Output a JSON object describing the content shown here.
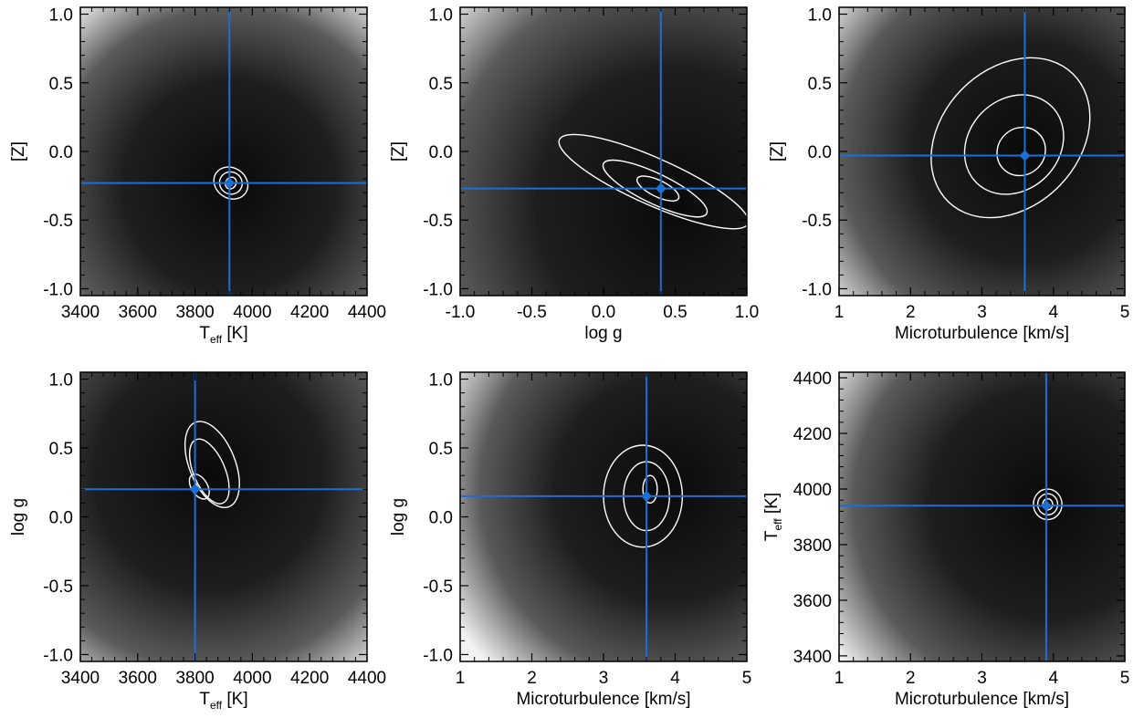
{
  "chart_data": [
    {
      "type": "heatmap",
      "xlabel": "T",
      "xlabel_sub": "eff",
      "xlabel_unit": " [K]",
      "ylabel": "[Z]",
      "ylabel_sub": "",
      "ylabel_unit": "",
      "xlim": [
        3400,
        4400
      ],
      "ylim": [
        -1.05,
        1.05
      ],
      "xticks": [
        3400,
        3600,
        3800,
        4000,
        4200,
        4400
      ],
      "xtick_labels": [
        "3400",
        "3600",
        "3800",
        "4000",
        "4200",
        "4400"
      ],
      "yticks": [
        -1.0,
        -0.5,
        0.0,
        0.5,
        1.0
      ],
      "ytick_labels": [
        "-1.0",
        "-0.5",
        "0.0",
        "0.5",
        "1.0"
      ],
      "best_fit": {
        "x": 3920,
        "y": -0.23
      },
      "contours": [
        {
          "cx": 3925,
          "cy": -0.23,
          "rx": 18,
          "ry": 0.045,
          "angle": -0.6
        },
        {
          "cx": 3925,
          "cy": -0.23,
          "rx": 40,
          "ry": 0.08,
          "angle": -0.6
        },
        {
          "cx": 3925,
          "cy": -0.23,
          "rx": 62,
          "ry": 0.11,
          "angle": -0.6
        }
      ],
      "background": {
        "dark_x": 3920,
        "dark_y": -0.25,
        "bright_x": 4400,
        "bright_y": 1.05
      }
    },
    {
      "type": "heatmap",
      "xlabel": "log g",
      "xlabel_sub": "",
      "xlabel_unit": "",
      "ylabel": "[Z]",
      "ylabel_sub": "",
      "ylabel_unit": "",
      "xlim": [
        -1.0,
        1.0
      ],
      "ylim": [
        -1.05,
        1.05
      ],
      "xticks": [
        -1.0,
        -0.5,
        0.0,
        0.5,
        1.0
      ],
      "xtick_labels": [
        "-1.0",
        "-0.5",
        "0.0",
        "0.5",
        "1.0"
      ],
      "yticks": [
        -1.0,
        -0.5,
        0.0,
        0.5,
        1.0
      ],
      "ytick_labels": [
        "-1.0",
        "-0.5",
        "0.0",
        "0.5",
        "1.0"
      ],
      "best_fit": {
        "x": 0.4,
        "y": -0.27
      },
      "contours": [
        {
          "cx": 0.38,
          "cy": -0.27,
          "rx": 0.16,
          "ry": 0.06,
          "angle": -0.45
        },
        {
          "cx": 0.36,
          "cy": -0.27,
          "rx": 0.4,
          "ry": 0.11,
          "angle": -0.45
        },
        {
          "cx": 0.35,
          "cy": -0.22,
          "rx": 0.72,
          "ry": 0.17,
          "angle": -0.42
        }
      ],
      "background": {
        "dark_x": 0.5,
        "dark_y": -0.4,
        "bright_x": -1.0,
        "bright_y": 1.05
      }
    },
    {
      "type": "heatmap",
      "xlabel": "Microturbulence [km/s]",
      "xlabel_sub": "",
      "xlabel_unit": "",
      "ylabel": "[Z]",
      "ylabel_sub": "",
      "ylabel_unit": "",
      "xlim": [
        1,
        5
      ],
      "ylim": [
        -1.05,
        1.05
      ],
      "xticks": [
        1,
        2,
        3,
        4,
        5
      ],
      "xtick_labels": [
        "1",
        "2",
        "3",
        "4",
        "5"
      ],
      "yticks": [
        -1.0,
        -0.5,
        0.0,
        0.5,
        1.0
      ],
      "ytick_labels": [
        "-1.0",
        "-0.5",
        "0.0",
        "0.5",
        "1.0"
      ],
      "best_fit": {
        "x": 3.6,
        "y": -0.03
      },
      "contours": [
        {
          "cx": 3.55,
          "cy": 0.0,
          "rx": 0.35,
          "ry": 0.17,
          "angle": 0.78
        },
        {
          "cx": 3.45,
          "cy": 0.05,
          "rx": 0.75,
          "ry": 0.33,
          "angle": 0.8
        },
        {
          "cx": 3.4,
          "cy": 0.1,
          "rx": 1.25,
          "ry": 0.5,
          "angle": 0.8
        }
      ],
      "background": {
        "dark_x": 3.6,
        "dark_y": 0.0,
        "bright_x": 1.0,
        "bright_y": -1.05
      }
    },
    {
      "type": "heatmap",
      "xlabel": "T",
      "xlabel_sub": "eff",
      "xlabel_unit": " [K]",
      "ylabel": "log g",
      "ylabel_sub": "",
      "ylabel_unit": "",
      "xlim": [
        3400,
        4400
      ],
      "ylim": [
        -1.05,
        1.05
      ],
      "xticks": [
        3400,
        3600,
        3800,
        4000,
        4200,
        4400
      ],
      "xtick_labels": [
        "3400",
        "3600",
        "3800",
        "4000",
        "4200",
        "4400"
      ],
      "yticks": [
        -1.0,
        -0.5,
        0.0,
        0.5,
        1.0
      ],
      "ytick_labels": [
        "-1.0",
        "-0.5",
        "0.0",
        "0.5",
        "1.0"
      ],
      "best_fit": {
        "x": 3800,
        "y": 0.2
      },
      "contours": [
        {
          "cx": 3815,
          "cy": 0.22,
          "rx": 28,
          "ry": 0.1,
          "angle": 0.55
        },
        {
          "cx": 3850,
          "cy": 0.33,
          "rx": 55,
          "ry": 0.25,
          "angle": 0.4
        },
        {
          "cx": 3860,
          "cy": 0.38,
          "rx": 80,
          "ry": 0.33,
          "angle": 0.38
        }
      ],
      "background": {
        "dark_x": 3850,
        "dark_y": 0.3,
        "bright_x": 4400,
        "bright_y": -1.05
      }
    },
    {
      "type": "heatmap",
      "xlabel": "Microturbulence [km/s]",
      "xlabel_sub": "",
      "xlabel_unit": "",
      "ylabel": "log g",
      "ylabel_sub": "",
      "ylabel_unit": "",
      "xlim": [
        1,
        5
      ],
      "ylim": [
        -1.05,
        1.05
      ],
      "xticks": [
        1,
        2,
        3,
        4,
        5
      ],
      "xtick_labels": [
        "1",
        "2",
        "3",
        "4",
        "5"
      ],
      "yticks": [
        -1.0,
        -0.5,
        0.0,
        0.5,
        1.0
      ],
      "ytick_labels": [
        "-1.0",
        "-0.5",
        "0.0",
        "0.5",
        "1.0"
      ],
      "best_fit": {
        "x": 3.6,
        "y": 0.15
      },
      "contours": [
        {
          "cx": 3.65,
          "cy": 0.2,
          "rx": 0.1,
          "ry": 0.1,
          "angle": 0.0
        },
        {
          "cx": 3.6,
          "cy": 0.15,
          "rx": 0.32,
          "ry": 0.25,
          "angle": 0.0
        },
        {
          "cx": 3.55,
          "cy": 0.15,
          "rx": 0.55,
          "ry": 0.37,
          "angle": 0.0
        }
      ],
      "background": {
        "dark_x": 3.9,
        "dark_y": 0.2,
        "bright_x": 1.0,
        "bright_y": 1.05
      }
    },
    {
      "type": "heatmap",
      "xlabel": "Microturbulence [km/s]",
      "xlabel_sub": "",
      "xlabel_unit": "",
      "ylabel": "T",
      "ylabel_sub": "eff",
      "ylabel_unit": " [K]",
      "xlim": [
        1,
        5
      ],
      "ylim": [
        3380,
        4420
      ],
      "xticks": [
        1,
        2,
        3,
        4,
        5
      ],
      "xtick_labels": [
        "1",
        "2",
        "3",
        "4",
        "5"
      ],
      "yticks": [
        3400,
        3600,
        3800,
        4000,
        4200,
        4400
      ],
      "ytick_labels": [
        "3400",
        "3600",
        "3800",
        "4000",
        "4200",
        "4400"
      ],
      "best_fit": {
        "x": 3.9,
        "y": 3940
      },
      "contours": [
        {
          "cx": 3.92,
          "cy": 3945,
          "rx": 0.07,
          "ry": 20,
          "angle": 0.0
        },
        {
          "cx": 3.92,
          "cy": 3945,
          "rx": 0.14,
          "ry": 38,
          "angle": 0.0
        },
        {
          "cx": 3.92,
          "cy": 3945,
          "rx": 0.2,
          "ry": 55,
          "angle": 0.0
        }
      ],
      "background": {
        "dark_x": 3.9,
        "dark_y": 3950,
        "bright_x": 1.0,
        "bright_y": 4420
      }
    }
  ],
  "colors": {
    "crosshair": "#1c6fd4",
    "contour": "#ffffff",
    "dark": "#0a0a0a",
    "bright": "#f2f2f2"
  }
}
